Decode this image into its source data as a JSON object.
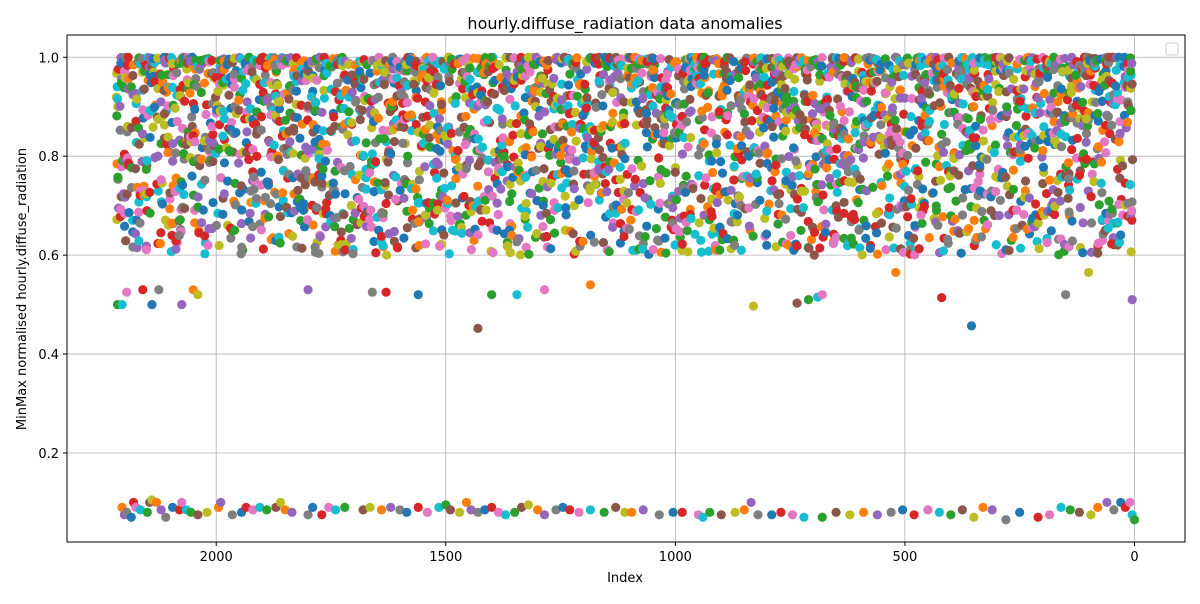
{
  "chart_data": {
    "type": "scatter",
    "title": "hourly.diffuse_radiation data anomalies",
    "xlabel": "Index",
    "ylabel": "MinMax normalised hourly.diffuse_radiation",
    "xlim": [
      2325,
      -110
    ],
    "ylim": [
      0.02,
      1.045
    ],
    "x_inverted": true,
    "x_ticks": [
      2000,
      1500,
      1000,
      500,
      0
    ],
    "y_ticks": [
      0.2,
      0.4,
      0.6,
      0.8,
      1.0
    ],
    "x_tick_labels": [
      "2000",
      "1500",
      "1000",
      "500",
      "0"
    ],
    "y_tick_labels": [
      "0.2",
      "0.4",
      "0.6",
      "0.8",
      "1.0"
    ],
    "grid": true,
    "legend": {
      "placement": "top-right",
      "entries": []
    },
    "palette": [
      "#1f77b4",
      "#ff7f0e",
      "#2ca02c",
      "#d62728",
      "#9467bd",
      "#8c564b",
      "#e377c2",
      "#7f7f7f",
      "#bcbd22",
      "#17becf"
    ],
    "dense_band": {
      "x_range": [
        2215,
        0
      ],
      "y_range": [
        0.6,
        1.0
      ],
      "columns_per_index": 1,
      "step": 8
    },
    "low_cluster": [
      [
        2205,
        0.09
      ],
      [
        2200,
        0.075
      ],
      [
        2195,
        0.08
      ],
      [
        2185,
        0.07
      ],
      [
        2180,
        0.1
      ],
      [
        2175,
        0.09
      ],
      [
        2165,
        0.085
      ],
      [
        2150,
        0.08
      ],
      [
        2145,
        0.1
      ],
      [
        2140,
        0.105
      ],
      [
        2130,
        0.1
      ],
      [
        2120,
        0.085
      ],
      [
        2110,
        0.07
      ],
      [
        2095,
        0.09
      ],
      [
        2080,
        0.085
      ],
      [
        2075,
        0.1
      ],
      [
        2065,
        0.085
      ],
      [
        2055,
        0.08
      ],
      [
        2040,
        0.075
      ],
      [
        2020,
        0.08
      ],
      [
        1995,
        0.09
      ],
      [
        1990,
        0.1
      ],
      [
        1965,
        0.075
      ],
      [
        1945,
        0.08
      ],
      [
        1935,
        0.09
      ],
      [
        1920,
        0.085
      ],
      [
        1905,
        0.09
      ],
      [
        1890,
        0.085
      ],
      [
        1870,
        0.09
      ],
      [
        1860,
        0.1
      ],
      [
        1850,
        0.085
      ],
      [
        1835,
        0.08
      ],
      [
        1800,
        0.075
      ],
      [
        1790,
        0.09
      ],
      [
        1770,
        0.075
      ],
      [
        1755,
        0.09
      ],
      [
        1740,
        0.085
      ],
      [
        1720,
        0.09
      ],
      [
        1680,
        0.085
      ],
      [
        1665,
        0.09
      ],
      [
        1640,
        0.085
      ],
      [
        1620,
        0.09
      ],
      [
        1600,
        0.085
      ],
      [
        1585,
        0.08
      ],
      [
        1560,
        0.09
      ],
      [
        1540,
        0.08
      ],
      [
        1515,
        0.09
      ],
      [
        1500,
        0.095
      ],
      [
        1490,
        0.085
      ],
      [
        1470,
        0.08
      ],
      [
        1455,
        0.1
      ],
      [
        1445,
        0.085
      ],
      [
        1430,
        0.08
      ],
      [
        1415,
        0.085
      ],
      [
        1400,
        0.09
      ],
      [
        1385,
        0.08
      ],
      [
        1370,
        0.075
      ],
      [
        1350,
        0.08
      ],
      [
        1335,
        0.09
      ],
      [
        1320,
        0.095
      ],
      [
        1300,
        0.085
      ],
      [
        1285,
        0.075
      ],
      [
        1260,
        0.085
      ],
      [
        1245,
        0.09
      ],
      [
        1230,
        0.085
      ],
      [
        1210,
        0.08
      ],
      [
        1185,
        0.085
      ],
      [
        1155,
        0.08
      ],
      [
        1130,
        0.09
      ],
      [
        1110,
        0.08
      ],
      [
        1095,
        0.08
      ],
      [
        1070,
        0.085
      ],
      [
        1035,
        0.075
      ],
      [
        1005,
        0.08
      ],
      [
        985,
        0.08
      ],
      [
        950,
        0.075
      ],
      [
        940,
        0.07
      ],
      [
        925,
        0.08
      ],
      [
        900,
        0.075
      ],
      [
        870,
        0.08
      ],
      [
        850,
        0.085
      ],
      [
        835,
        0.1
      ],
      [
        820,
        0.075
      ],
      [
        790,
        0.075
      ],
      [
        770,
        0.08
      ],
      [
        745,
        0.075
      ],
      [
        720,
        0.07
      ],
      [
        680,
        0.07
      ],
      [
        650,
        0.08
      ],
      [
        620,
        0.075
      ],
      [
        590,
        0.08
      ],
      [
        560,
        0.075
      ],
      [
        530,
        0.08
      ],
      [
        505,
        0.085
      ],
      [
        480,
        0.075
      ],
      [
        450,
        0.085
      ],
      [
        425,
        0.08
      ],
      [
        400,
        0.075
      ],
      [
        375,
        0.085
      ],
      [
        350,
        0.07
      ],
      [
        330,
        0.09
      ],
      [
        310,
        0.085
      ],
      [
        280,
        0.065
      ],
      [
        250,
        0.08
      ],
      [
        210,
        0.07
      ],
      [
        185,
        0.075
      ],
      [
        160,
        0.09
      ],
      [
        140,
        0.085
      ],
      [
        120,
        0.08
      ],
      [
        95,
        0.075
      ],
      [
        80,
        0.09
      ],
      [
        60,
        0.1
      ],
      [
        45,
        0.085
      ],
      [
        30,
        0.1
      ],
      [
        20,
        0.09
      ],
      [
        10,
        0.1
      ],
      [
        5,
        0.075
      ],
      [
        0,
        0.065
      ]
    ],
    "outliers": [
      [
        2215,
        0.5
      ],
      [
        2205,
        0.5
      ],
      [
        2195,
        0.525
      ],
      [
        2160,
        0.53
      ],
      [
        2140,
        0.5
      ],
      [
        2125,
        0.53
      ],
      [
        2075,
        0.5
      ],
      [
        2050,
        0.53
      ],
      [
        2040,
        0.52
      ],
      [
        1430,
        0.452
      ],
      [
        1400,
        0.52
      ],
      [
        1345,
        0.52
      ],
      [
        1285,
        0.53
      ],
      [
        1630,
        0.525
      ],
      [
        1560,
        0.52
      ],
      [
        1660,
        0.525
      ],
      [
        1800,
        0.53
      ],
      [
        1185,
        0.54
      ],
      [
        830,
        0.497
      ],
      [
        735,
        0.503
      ],
      [
        710,
        0.51
      ],
      [
        690,
        0.515
      ],
      [
        680,
        0.52
      ],
      [
        420,
        0.514
      ],
      [
        355,
        0.457
      ],
      [
        150,
        0.52
      ],
      [
        5,
        0.51
      ],
      [
        520,
        0.565
      ],
      [
        100,
        0.565
      ]
    ]
  }
}
